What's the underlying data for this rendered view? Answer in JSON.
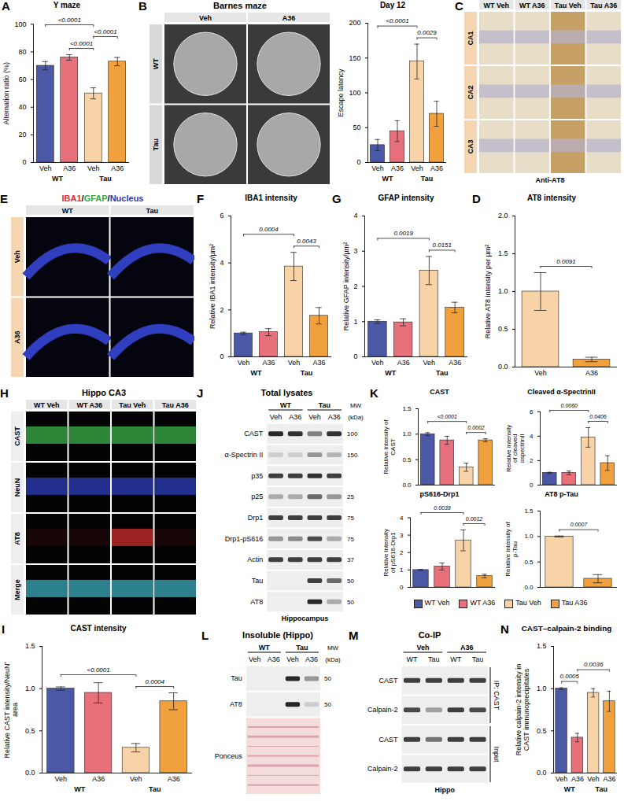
{
  "chart_data": [
    {
      "panel": "A",
      "type": "bar",
      "title": "Y maze",
      "categories": [
        "Veh",
        "A36",
        "Veh",
        "A36"
      ],
      "group_labels": [
        "WT",
        "Tau"
      ],
      "values": [
        70,
        76,
        50,
        73
      ],
      "errors": [
        3,
        2,
        4,
        3
      ],
      "colors": [
        "#4a58a6",
        "#e8707b",
        "#f8d3a8",
        "#f0a03c"
      ],
      "ylabel": "Alternation ratio (%)",
      "ylim": [
        0,
        100
      ],
      "yticks": [
        0,
        20,
        40,
        60,
        80,
        100
      ],
      "comparisons": [
        {
          "between": [
            0,
            2
          ],
          "label": "<0.0001"
        },
        {
          "between": [
            1,
            2
          ],
          "label": "<0.0001"
        },
        {
          "between": [
            2,
            3
          ],
          "label": "<0.0001"
        }
      ]
    },
    {
      "panel": "B",
      "type": "bar",
      "title": "Day 12",
      "categories": [
        "Veh",
        "A36",
        "Veh",
        "A36"
      ],
      "group_labels": [
        "WT",
        "Tau"
      ],
      "values": [
        25,
        45,
        145,
        70
      ],
      "errors": [
        8,
        15,
        25,
        18
      ],
      "colors": [
        "#4a58a6",
        "#e8707b",
        "#f8d3a8",
        "#f0a03c"
      ],
      "ylabel": "Escape latency",
      "ylim": [
        0,
        200
      ],
      "yticks": [
        0,
        50,
        100,
        150,
        200
      ],
      "comparisons": [
        {
          "between": [
            0,
            2
          ],
          "label": "<0.0001"
        },
        {
          "between": [
            2,
            3
          ],
          "label": "0.0029"
        }
      ]
    },
    {
      "panel": "D",
      "type": "bar",
      "title": "AT8 intensity",
      "categories": [
        "Veh",
        "A36"
      ],
      "values": [
        1.0,
        0.1
      ],
      "errors": [
        0.25,
        0.03
      ],
      "colors": [
        "#f8d3a8",
        "#f0a03c"
      ],
      "ylabel": "Relative AT8 intensity per µm²",
      "ylim": [
        0,
        2
      ],
      "yticks": [
        {
          "value": 0,
          "label": "0.0"
        },
        {
          "value": 0.5,
          "label": "0.5"
        },
        {
          "value": 1,
          "label": "1.0"
        },
        {
          "value": 1.5,
          "label": "1.5"
        },
        {
          "value": 2,
          "label": "2.0"
        }
      ],
      "comparisons": [
        {
          "between": [
            0,
            1
          ],
          "label": "0.0091"
        }
      ]
    },
    {
      "panel": "F",
      "type": "bar",
      "title": "IBA1 intensity",
      "categories": [
        "Veh",
        "A36",
        "Veh",
        "A36"
      ],
      "group_labels": [
        "WT",
        "Tau"
      ],
      "values": [
        1.0,
        1.05,
        3.85,
        1.75
      ],
      "errors": [
        0.05,
        0.15,
        0.6,
        0.35
      ],
      "colors": [
        "#4a58a6",
        "#e8707b",
        "#f8d3a8",
        "#f0a03c"
      ],
      "ylabel": "Relative IBA1 intensity/µm²",
      "ylim": [
        0,
        6
      ],
      "yticks": [
        0,
        2,
        4,
        6
      ],
      "comparisons": [
        {
          "between": [
            0,
            2
          ],
          "label": "0.0004"
        },
        {
          "between": [
            2,
            3
          ],
          "label": "0.0043"
        }
      ]
    },
    {
      "panel": "G",
      "type": "bar",
      "title": "GFAP intensity",
      "categories": [
        "Veh",
        "A36",
        "Veh",
        "A36"
      ],
      "group_labels": [
        "WT",
        "Tau"
      ],
      "values": [
        1.0,
        0.98,
        2.45,
        1.4
      ],
      "errors": [
        0.05,
        0.1,
        0.4,
        0.15
      ],
      "colors": [
        "#4a58a6",
        "#e8707b",
        "#f8d3a8",
        "#f0a03c"
      ],
      "ylabel": "Relative GFAP intensity/µm²",
      "ylim": [
        0,
        4
      ],
      "yticks": [
        0,
        1,
        2,
        3,
        4
      ],
      "comparisons": [
        {
          "between": [
            0,
            2
          ],
          "label": "0.0019"
        },
        {
          "between": [
            2,
            3
          ],
          "label": "0.0151"
        }
      ]
    },
    {
      "panel": "I",
      "type": "bar",
      "title": "CAST intensity",
      "categories": [
        "Veh",
        "A36",
        "Veh",
        "A36"
      ],
      "group_labels": [
        "WT",
        "Tau"
      ],
      "values": [
        1.0,
        0.95,
        0.3,
        0.85
      ],
      "errors": [
        0.02,
        0.12,
        0.05,
        0.1
      ],
      "colors": [
        "#4a58a6",
        "#e8707b",
        "#f8d3a8",
        "#f0a03c"
      ],
      "ylabel": "Relative CAST intensity/NeuN⁺ area",
      "ylim": [
        0,
        1.5
      ],
      "yticks": [
        {
          "value": 0,
          "label": "0.0"
        },
        {
          "value": 0.5,
          "label": "0.5"
        },
        {
          "value": 1,
          "label": "1.0"
        },
        {
          "value": 1.5,
          "label": "1.5"
        }
      ],
      "comparisons": [
        {
          "between": [
            0,
            2
          ],
          "label": "<0.0001"
        },
        {
          "between": [
            2,
            3
          ],
          "label": "0.0004"
        }
      ]
    },
    {
      "panel": "K",
      "type": "bar",
      "title": "CAST",
      "categories": [
        null,
        null,
        null,
        null
      ],
      "tick_labels": "y",
      "values": [
        1.0,
        0.88,
        0.35,
        0.88
      ],
      "errors": [
        0.03,
        0.08,
        0.08,
        0.03
      ],
      "colors": [
        "#4a58a6",
        "#e8707b",
        "#f8d3a8",
        "#f0a03c"
      ],
      "ylabel": "Relative intensity of CAST",
      "ylim": [
        0,
        1.5
      ],
      "yticks": [
        {
          "value": 0,
          "label": "0.0"
        },
        {
          "value": 0.5,
          "label": "0.5"
        },
        {
          "value": 1,
          "label": "1.0"
        },
        {
          "value": 1.5,
          "label": "1.5"
        }
      ],
      "comparisons": [
        {
          "between": [
            0,
            2
          ],
          "label": "<0.0001"
        },
        {
          "between": [
            2,
            3
          ],
          "label": "0.0002"
        }
      ]
    },
    {
      "panel": "K",
      "type": "bar",
      "title": "Cleaved α-SpectrinII",
      "categories": [
        null,
        null,
        null,
        null
      ],
      "tick_labels": "y",
      "values": [
        1.0,
        1.0,
        3.9,
        1.8
      ],
      "errors": [
        0.05,
        0.15,
        0.8,
        0.6
      ],
      "colors": [
        "#4a58a6",
        "#e8707b",
        "#f8d3a8",
        "#f0a03c"
      ],
      "ylabel": "Relative intensity of cleaved αspectrinII",
      "ylim": [
        0,
        6
      ],
      "yticks": [
        0,
        2,
        4,
        6
      ],
      "comparisons": [
        {
          "between": [
            0,
            2
          ],
          "label": "0.0060"
        },
        {
          "between": [
            2,
            3
          ],
          "label": "0.0406"
        }
      ]
    },
    {
      "panel": "K",
      "type": "bar",
      "title": "pS616-Drp1",
      "categories": [
        null,
        null,
        null,
        null
      ],
      "tick_labels": "y",
      "values": [
        1.0,
        1.2,
        2.7,
        0.65
      ],
      "errors": [
        0.03,
        0.2,
        0.6,
        0.1
      ],
      "colors": [
        "#4a58a6",
        "#e8707b",
        "#f8d3a8",
        "#f0a03c"
      ],
      "ylabel": "Relative intensity of pS616-Drp1",
      "ylim": [
        0,
        4
      ],
      "yticks": [
        0,
        1,
        2,
        3,
        4
      ],
      "comparisons": [
        {
          "between": [
            0,
            2
          ],
          "label": "0.0039"
        },
        {
          "between": [
            2,
            3
          ],
          "label": "0.0012"
        }
      ]
    },
    {
      "panel": "K",
      "type": "bar",
      "title": "AT8 p-Tau",
      "categories": [
        null,
        null
      ],
      "tick_labels": "y",
      "values": [
        1.0,
        0.17
      ],
      "errors": [
        0.01,
        0.08
      ],
      "colors": [
        "#f8d3a8",
        "#f0a03c"
      ],
      "ylabel": "Relative intensity of p-Tau",
      "ylim": [
        0,
        1.5
      ],
      "yticks": [
        {
          "value": 0,
          "label": "0.0"
        },
        {
          "value": 0.5,
          "label": "0.5"
        },
        {
          "value": 1,
          "label": "1.0"
        },
        {
          "value": 1.5,
          "label": "1.5"
        }
      ],
      "comparisons": [
        {
          "between": [
            0,
            1
          ],
          "label": "0.0007"
        }
      ]
    },
    {
      "panel": "N",
      "type": "bar",
      "title": "CAST–calpain-2 binding",
      "categories": [
        "Veh",
        "A36",
        "Veh",
        "A36"
      ],
      "group_labels": [
        "WT",
        "Tau"
      ],
      "values": [
        1.0,
        0.42,
        0.95,
        0.85
      ],
      "errors": [
        0.01,
        0.05,
        0.05,
        0.12
      ],
      "colors": [
        "#4a58a6",
        "#e8707b",
        "#f8d3a8",
        "#f0a03c"
      ],
      "ylabel": "Relative calpain-2 intensity in CAST immunoprecipitates",
      "ylim": [
        0,
        1.5
      ],
      "yticks": [
        {
          "value": 0,
          "label": "0.0"
        },
        {
          "value": 0.5,
          "label": "0.5"
        },
        {
          "value": 1,
          "label": "1.0"
        },
        {
          "value": 1.5,
          "label": "1.5"
        }
      ],
      "comparisons": [
        {
          "between": [
            0,
            1
          ],
          "label": "0.0005"
        },
        {
          "between": [
            1,
            3
          ],
          "label": "0.0036"
        }
      ]
    }
  ],
  "k_legend": {
    "legend": "bottom",
    "series": [
      {
        "name": "WT Veh",
        "color": "#4a58a6"
      },
      {
        "name": "WT A36",
        "color": "#e8707b"
      },
      {
        "name": "Tau Veh",
        "color": "#f8d3a8"
      },
      {
        "name": "Tau A36",
        "color": "#f0a03c"
      }
    ]
  },
  "panels": [
    {
      "panel": "B",
      "type": "image_grid",
      "title": "Barnes maze",
      "columns": [
        "Veh",
        "A36"
      ],
      "rows": [
        "WT",
        "Tau"
      ]
    },
    {
      "panel": "C",
      "type": "image_grid",
      "columns": [
        "WT Veh",
        "WT A36",
        "Tau Veh",
        "Tau A36"
      ],
      "rows": [
        "CA1",
        "CA2",
        "CA3"
      ],
      "caption": "Anti-AT8"
    },
    {
      "panel": "E",
      "type": "image_grid",
      "title_parts": [
        {
          "text": "IBA1",
          "color": "#e0302e"
        },
        {
          "text": "/",
          "color": "#000000"
        },
        {
          "text": "GFAP",
          "color": "#35a845"
        },
        {
          "text": "/",
          "color": "#000000"
        },
        {
          "text": "Nucleus",
          "color": "#2b3aa8"
        }
      ],
      "columns": [
        "WT",
        "Tau"
      ],
      "rows": [
        "Veh",
        "A36"
      ]
    },
    {
      "panel": "H",
      "type": "image_grid",
      "title": "Hippo CA3",
      "columns": [
        "WT Veh",
        "WT A36",
        "Tau Veh",
        "Tau A36"
      ],
      "rows": [
        "CAST",
        "NeuN",
        "AT8",
        "Merge"
      ]
    },
    {
      "panel": "J",
      "type": "blot",
      "title": "Total lysates",
      "column_groups": [
        "WT",
        "Tau"
      ],
      "columns": [
        "Veh",
        "A36",
        "Veh",
        "A36"
      ],
      "mw_header": "MW (kDa)",
      "rows": [
        {
          "label": "CAST",
          "mw": 100,
          "bands": [
            0.9,
            0.85,
            0.5,
            0.85
          ]
        },
        {
          "label": "α-Spectrin II",
          "mw": 150,
          "bands": [
            0.15,
            0.15,
            0.4,
            0.25
          ]
        },
        {
          "label": "p35",
          "mw": null,
          "bands": [
            0.8,
            0.8,
            0.85,
            0.8
          ]
        },
        {
          "label": "p25",
          "mw": 25,
          "bands": [
            0.3,
            0.3,
            0.6,
            0.4
          ]
        },
        {
          "label": "Drp1",
          "mw": 75,
          "bands": [
            0.8,
            0.8,
            0.8,
            0.8
          ]
        },
        {
          "label": "Drp1-pS616",
          "mw": 75,
          "bands": [
            0.4,
            0.45,
            0.75,
            0.3
          ]
        },
        {
          "label": "Actin",
          "mw": 37,
          "bands": [
            0.8,
            0.8,
            0.8,
            0.8
          ]
        },
        {
          "label": "Tau",
          "mw": 50,
          "bands": [
            0,
            0,
            0.8,
            0.6
          ]
        },
        {
          "label": "AT8",
          "mw": 50,
          "bands": [
            0,
            0,
            0.9,
            0.3
          ]
        }
      ],
      "caption": "Hippocampus"
    },
    {
      "panel": "L",
      "type": "blot",
      "title": "Insoluble (Hippo)",
      "column_groups": [
        "WT",
        "Tau"
      ],
      "columns": [
        "Veh",
        "A36",
        "Veh",
        "A36"
      ],
      "mw_header": "MW (kDa)",
      "rows": [
        {
          "label": "Tau",
          "mw": 50,
          "bands": [
            0,
            0,
            0.9,
            0.4
          ]
        },
        {
          "label": "AT8",
          "mw": 50,
          "bands": [
            0,
            0,
            0.9,
            0.15
          ]
        },
        {
          "label": "Ponceus",
          "mw": null
        }
      ]
    },
    {
      "panel": "M",
      "type": "blot",
      "title": "Co-IP",
      "column_groups": [
        "Veh",
        "A36"
      ],
      "columns": [
        "WT",
        "Tau",
        "WT",
        "Tau"
      ],
      "rows": [
        {
          "label": "CAST",
          "bands": [
            0.8,
            0.8,
            0.8,
            0.8
          ]
        },
        {
          "label": "Calpain-2",
          "bands": [
            0.75,
            0.35,
            0.8,
            0.75
          ]
        },
        {
          "label": "CAST",
          "bands": [
            0.8,
            0.55,
            0.8,
            0.8
          ]
        },
        {
          "label": "Calpain-2",
          "bands": [
            0.8,
            0.8,
            0.8,
            0.8
          ]
        }
      ],
      "row_groups": [
        {
          "label": "IP: CAST",
          "rows": [
            0,
            1
          ]
        },
        {
          "label": "Input",
          "rows": [
            2,
            3
          ]
        }
      ],
      "caption": "Hippo"
    }
  ]
}
